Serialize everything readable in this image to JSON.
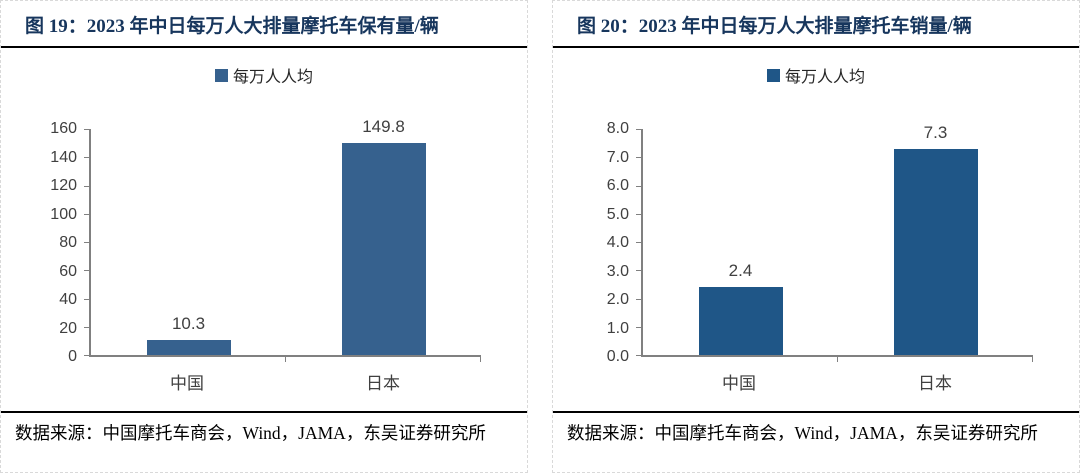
{
  "page": {
    "background": "#ffffff",
    "title_color": "#17365d",
    "axis_color": "#808080",
    "label_color": "#404040"
  },
  "chart_data": [
    {
      "type": "bar",
      "title": "图 19：2023 年中日每万人大排量摩托车保有量/辆",
      "series_name": "每万人人均",
      "categories": [
        "中国",
        "日本"
      ],
      "values": [
        10.3,
        149.8
      ],
      "value_labels": [
        "10.3",
        "149.8"
      ],
      "ylim": [
        0,
        160
      ],
      "ytick_step": 20,
      "yticks": [
        "160",
        "140",
        "120",
        "100",
        "80",
        "60",
        "40",
        "20",
        "0"
      ],
      "bar_color": "#36618e",
      "legend_position": "top",
      "grid": false,
      "source": "数据来源：中国摩托车商会，Wind，JAMA，东吴证券研究所"
    },
    {
      "type": "bar",
      "title": "图 20：2023 年中日每万人大排量摩托车销量/辆",
      "series_name": "每万人人均",
      "categories": [
        "中国",
        "日本"
      ],
      "values": [
        2.4,
        7.3
      ],
      "value_labels": [
        "2.4",
        "7.3"
      ],
      "ylim": [
        0,
        8
      ],
      "ytick_step": 1,
      "yticks": [
        "8.0",
        "7.0",
        "6.0",
        "5.0",
        "4.0",
        "3.0",
        "2.0",
        "1.0",
        "0.0"
      ],
      "bar_color": "#1f5687",
      "legend_position": "top",
      "grid": false,
      "source": "数据来源：中国摩托车商会，Wind，JAMA，东吴证券研究所"
    }
  ]
}
